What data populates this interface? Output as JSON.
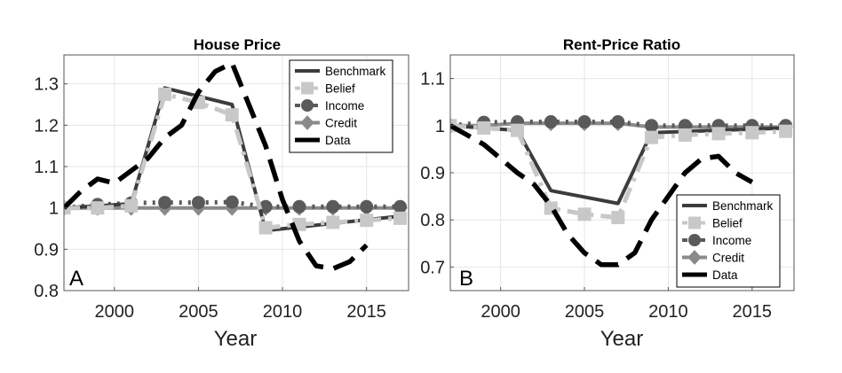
{
  "chart_data": [
    {
      "type": "line",
      "title": "House Price",
      "xlabel": "Year",
      "ylabel": "",
      "panel_label": "A",
      "xlim": [
        1997,
        2017.5
      ],
      "ylim": [
        0.8,
        1.37
      ],
      "xticks": [
        2000,
        2005,
        2010,
        2015
      ],
      "yticks": [
        0.8,
        0.9,
        1,
        1.1,
        1.2,
        1.3
      ],
      "grid": true,
      "legend_position": "top-right",
      "series": [
        {
          "name": "Benchmark",
          "color": "#3c3c3c",
          "style": "solid",
          "marker": "none",
          "x": [
            1997,
            2001,
            2003,
            2007,
            2009,
            2017
          ],
          "y": [
            1.0,
            1.01,
            1.29,
            1.25,
            0.945,
            0.98
          ]
        },
        {
          "name": "Belief",
          "color": "#c8c8c8",
          "style": "dashdot",
          "marker": "square",
          "x": [
            1997,
            1999,
            2001,
            2003,
            2005,
            2007,
            2009,
            2011,
            2013,
            2015,
            2017
          ],
          "y": [
            1.0,
            1.0,
            1.005,
            1.275,
            1.255,
            1.225,
            0.952,
            0.96,
            0.965,
            0.97,
            0.975
          ]
        },
        {
          "name": "Income",
          "color": "#5a5a5a",
          "style": "dotted",
          "marker": "circle",
          "x": [
            1997,
            1999,
            2001,
            2003,
            2005,
            2007,
            2009,
            2011,
            2013,
            2015,
            2017
          ],
          "y": [
            1.0,
            1.008,
            1.012,
            1.013,
            1.013,
            1.014,
            1.003,
            1.003,
            1.003,
            1.003,
            1.003
          ]
        },
        {
          "name": "Credit",
          "color": "#8a8a8a",
          "style": "solid",
          "marker": "diamond",
          "x": [
            1997,
            1999,
            2001,
            2003,
            2005,
            2007,
            2009,
            2011,
            2013,
            2015,
            2017
          ],
          "y": [
            1.0,
            1.0,
            1.0,
            1.0,
            1.0,
            1.0,
            1.0,
            1.0,
            1.0,
            1.0,
            1.0
          ]
        },
        {
          "name": "Data",
          "color": "#000000",
          "style": "dashed",
          "marker": "none",
          "x": [
            1997,
            1998,
            1999,
            2000,
            2001,
            2002,
            2003,
            2004,
            2005,
            2006,
            2007,
            2008,
            2009,
            2010,
            2011,
            2012,
            2013,
            2014,
            2015
          ],
          "y": [
            1.0,
            1.04,
            1.07,
            1.06,
            1.09,
            1.12,
            1.17,
            1.2,
            1.28,
            1.33,
            1.35,
            1.25,
            1.15,
            1.02,
            0.92,
            0.86,
            0.853,
            0.87,
            0.91
          ]
        }
      ]
    },
    {
      "type": "line",
      "title": "Rent-Price Ratio",
      "xlabel": "Year",
      "ylabel": "",
      "panel_label": "B",
      "xlim": [
        1997,
        2017.5
      ],
      "ylim": [
        0.65,
        1.15
      ],
      "xticks": [
        2000,
        2005,
        2010,
        2015
      ],
      "yticks": [
        0.7,
        0.8,
        0.9,
        1,
        1.1
      ],
      "grid": true,
      "legend_position": "bottom-right",
      "series": [
        {
          "name": "Benchmark",
          "color": "#3c3c3c",
          "style": "solid",
          "marker": "none",
          "x": [
            1997,
            2001,
            2003,
            2007,
            2009,
            2017
          ],
          "y": [
            1.0,
            0.99,
            0.862,
            0.835,
            0.985,
            0.995
          ]
        },
        {
          "name": "Belief",
          "color": "#c8c8c8",
          "style": "dashdot",
          "marker": "square",
          "x": [
            1997,
            1999,
            2001,
            2003,
            2005,
            2007,
            2009,
            2011,
            2013,
            2015,
            2017
          ],
          "y": [
            1.0,
            0.995,
            0.99,
            0.825,
            0.812,
            0.805,
            0.975,
            0.98,
            0.983,
            0.985,
            0.988
          ]
        },
        {
          "name": "Income",
          "color": "#5a5a5a",
          "style": "dotted",
          "marker": "circle",
          "x": [
            1997,
            1999,
            2001,
            2003,
            2005,
            2007,
            2009,
            2011,
            2013,
            2015,
            2017
          ],
          "y": [
            1.0,
            1.007,
            1.008,
            1.008,
            1.008,
            1.008,
            1.0,
            1.0,
            1.0,
            1.0,
            1.0
          ]
        },
        {
          "name": "Credit",
          "color": "#8a8a8a",
          "style": "solid",
          "marker": "diamond",
          "x": [
            1997,
            1999,
            2001,
            2003,
            2005,
            2007,
            2009,
            2011,
            2013,
            2015,
            2017
          ],
          "y": [
            1.0,
            1.0,
            1.005,
            1.005,
            1.005,
            1.005,
            0.997,
            0.997,
            0.997,
            0.997,
            0.997
          ]
        },
        {
          "name": "Data",
          "color": "#000000",
          "style": "dashed",
          "marker": "none",
          "x": [
            1997,
            1998,
            1999,
            2000,
            2001,
            2002,
            2003,
            2004,
            2005,
            2006,
            2007,
            2008,
            2009,
            2010,
            2011,
            2012,
            2013,
            2014,
            2015
          ],
          "y": [
            1.0,
            0.98,
            0.96,
            0.93,
            0.9,
            0.875,
            0.83,
            0.77,
            0.73,
            0.705,
            0.705,
            0.73,
            0.8,
            0.85,
            0.9,
            0.93,
            0.935,
            0.9,
            0.88
          ]
        }
      ]
    }
  ]
}
